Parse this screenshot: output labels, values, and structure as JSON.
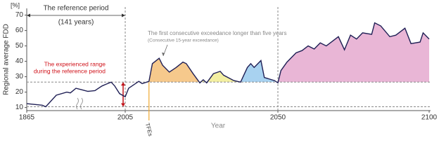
{
  "chart_data": {
    "type": "line",
    "y_unit": "[%]",
    "y_label": "Regional average FDD",
    "x_label": "Year",
    "color": "#1f1f55",
    "x": [
      1865,
      1887,
      1892,
      1907,
      1922,
      1927,
      1935,
      1952,
      1962,
      1972,
      1977,
      1985,
      1990,
      1997,
      2005,
      2006,
      2009,
      2010,
      2012,
      2013,
      2015,
      2016,
      2018,
      2020,
      2022,
      2023,
      2025,
      2027,
      2028,
      2029,
      2031,
      2033,
      2034,
      2037,
      2039,
      2041,
      2042,
      2043,
      2045,
      2046,
      2049,
      2050,
      2051,
      2053,
      2056,
      2058,
      2060,
      2062,
      2064,
      2066,
      2069,
      2070,
      2072,
      2074,
      2076,
      2078,
      2081,
      2082,
      2084,
      2087,
      2089,
      2092,
      2094,
      2097,
      2098,
      2100
    ],
    "values": [
      12.5,
      11.5,
      10.5,
      18,
      20,
      19.5,
      22.5,
      20.5,
      21,
      24,
      25,
      26.5,
      24,
      19,
      17,
      22.5,
      27,
      25.5,
      27,
      38.5,
      42,
      37.5,
      33,
      36,
      39.5,
      38.5,
      32,
      26,
      28,
      26,
      32,
      33.5,
      31,
      27.5,
      26.5,
      36,
      38.5,
      36,
      40.5,
      29.5,
      27.5,
      26,
      34,
      39.5,
      45.5,
      47,
      50,
      48,
      52,
      50,
      54.5,
      56,
      47.5,
      57,
      54.5,
      58.5,
      57.5,
      65,
      63,
      56,
      57,
      61.5,
      51.5,
      52.5,
      58.5,
      54.5
    ],
    "threshold": 26.5,
    "reference_min": 10.5,
    "exceedances": [
      {
        "from": 2012,
        "to": 2027,
        "color": "#f6c98c"
      },
      {
        "from": 2027,
        "to": 2038,
        "color": "#f3efa2"
      },
      {
        "from": 2039,
        "to": 2049,
        "color": "#a8d2f0"
      },
      {
        "from": 2050,
        "to": 2100,
        "color": "#e9b6d6"
      }
    ],
    "xticks": [
      1865,
      2005,
      2050,
      2100
    ],
    "ylim": [
      8,
      73
    ],
    "yticks": [
      10,
      20,
      30,
      40,
      50,
      60,
      70
    ],
    "annotations": {
      "reference_period": "The reference period",
      "reference_years": "(141 years)",
      "first_exceedance": "The first consecutive exceedance longer than five years",
      "first_exceedance_note": "(Consecutive 15-year exceedance)",
      "range_line1": "The experienced range",
      "range_line2": "during the reference period",
      "tfe": "TFEs",
      "tfe_year": 2012,
      "range_year": 2002
    }
  }
}
